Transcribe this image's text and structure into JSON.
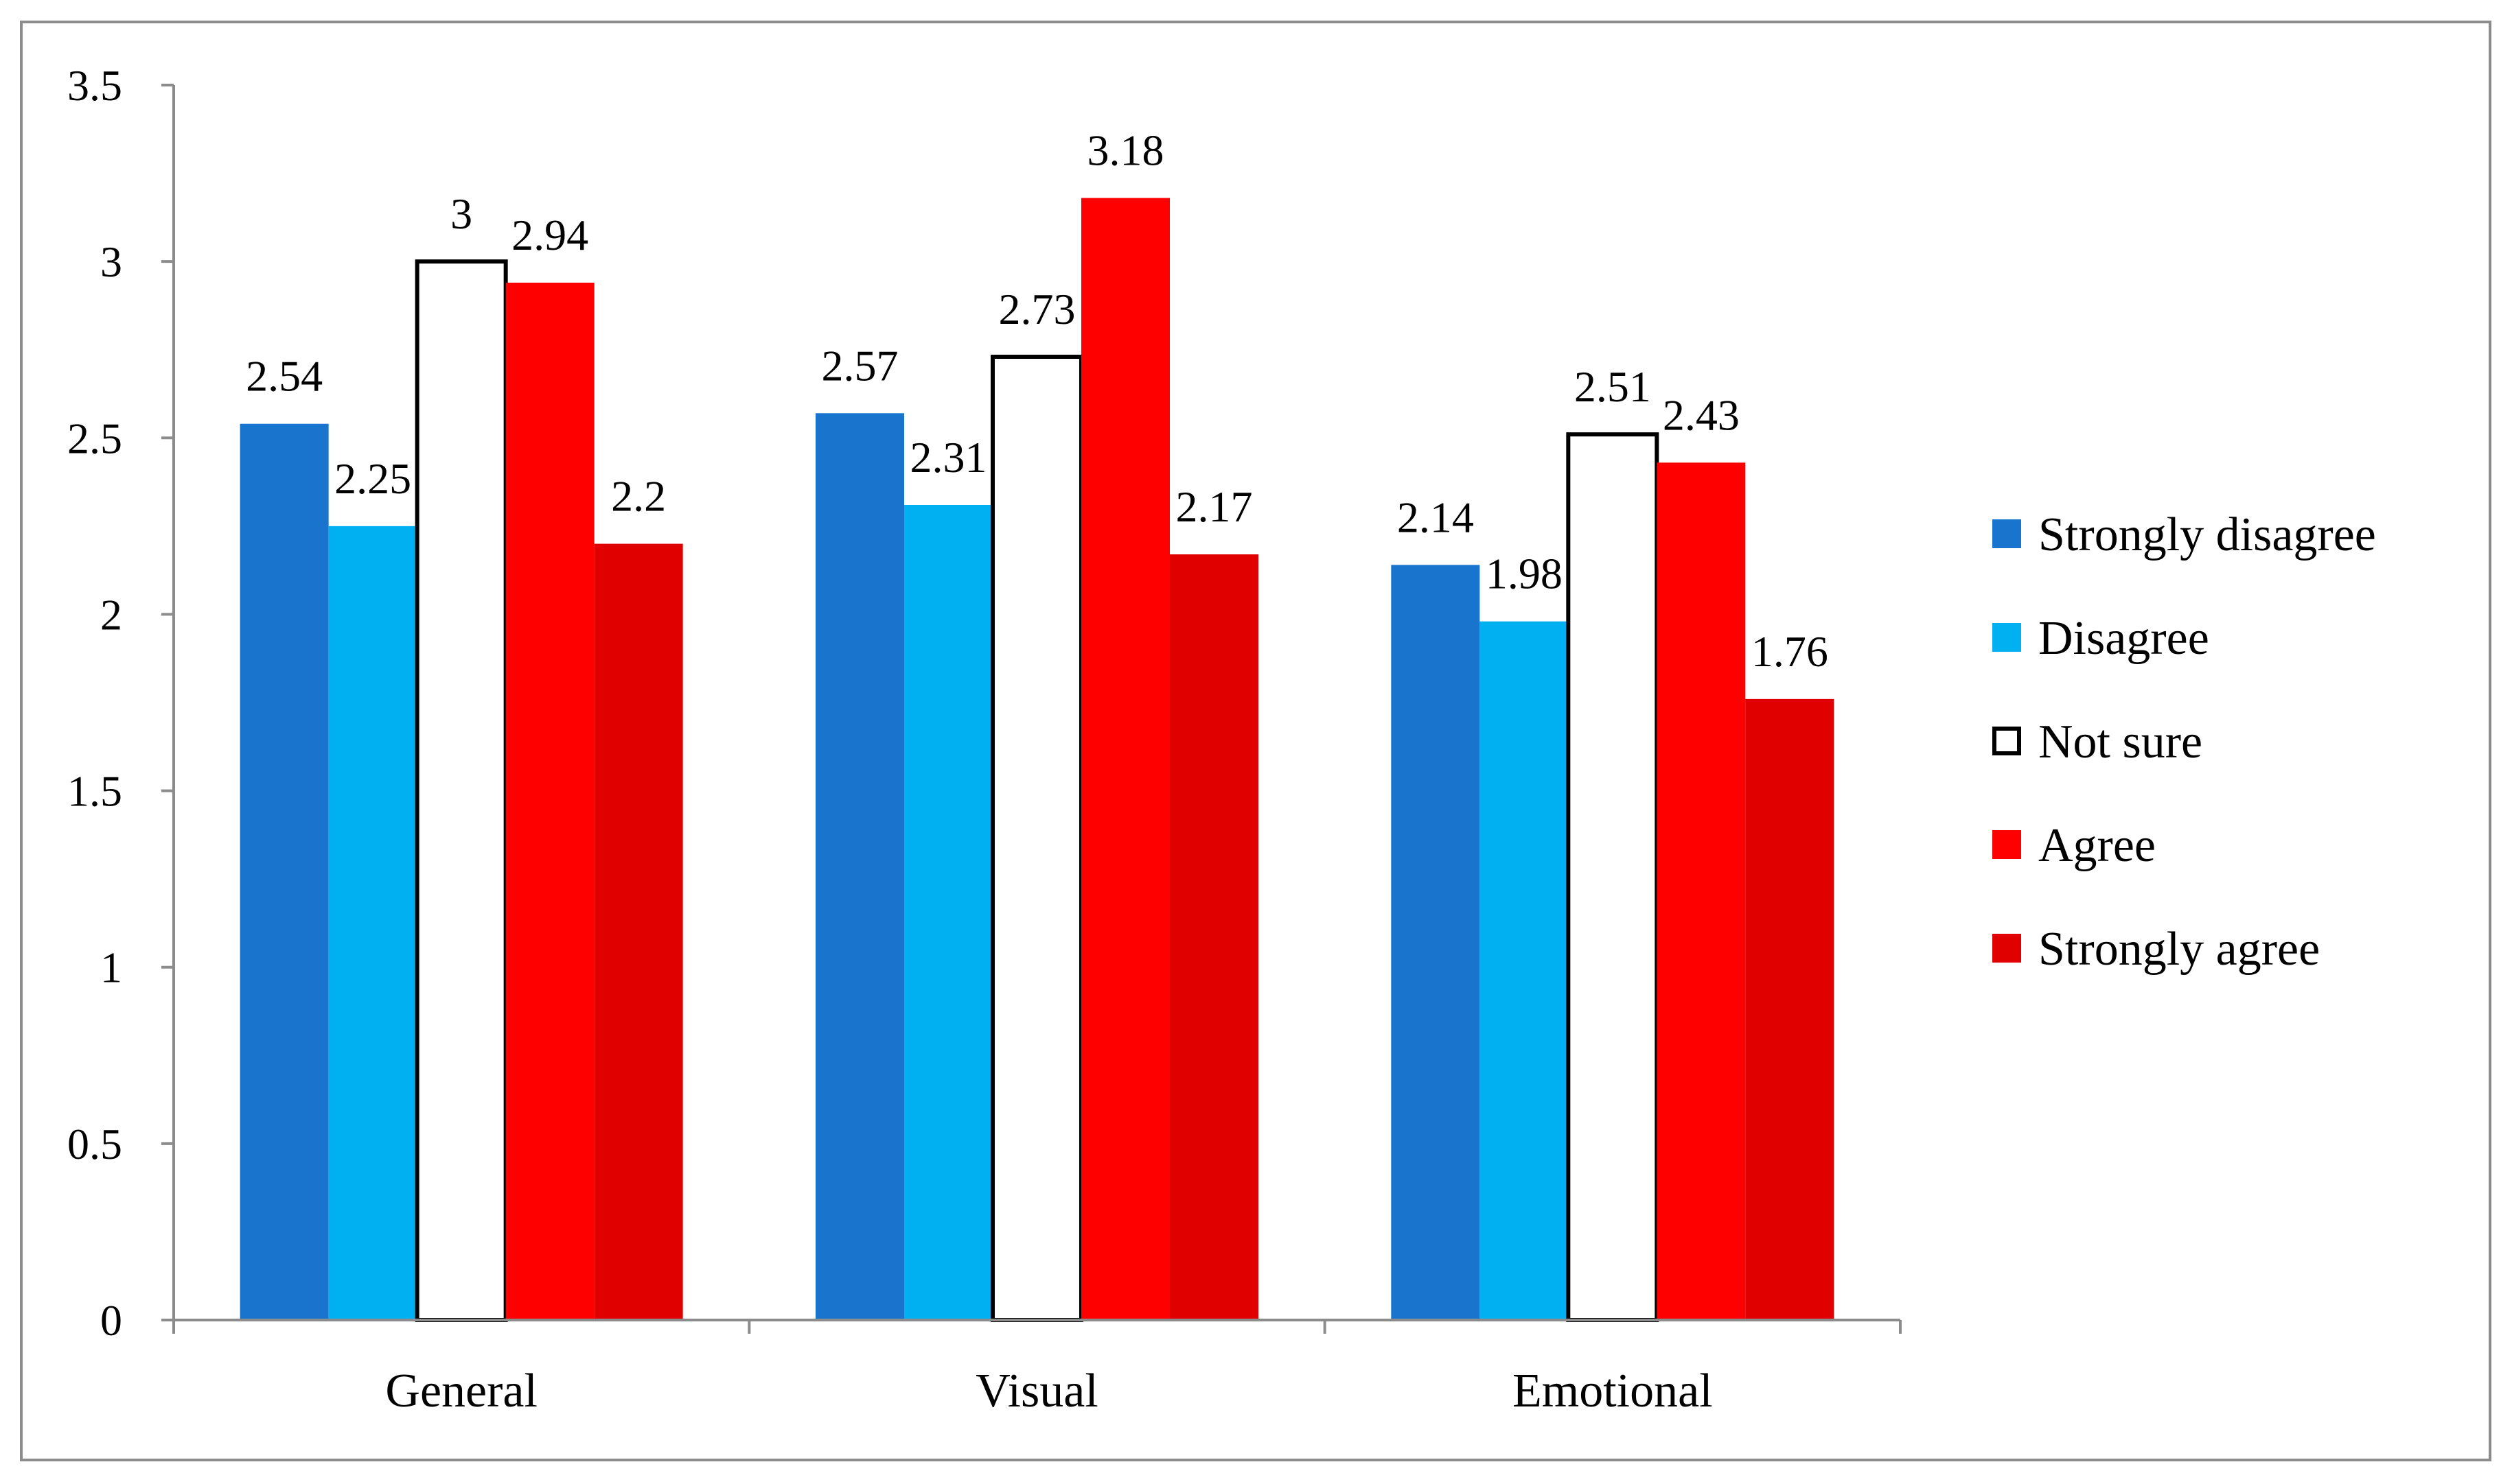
{
  "chart_data": {
    "type": "bar",
    "categories": [
      "General",
      "Visual",
      "Emotional"
    ],
    "series": [
      {
        "name": "Strongly disagree",
        "values": [
          2.54,
          2.57,
          2.14
        ],
        "color": "#1874cd",
        "outline": false
      },
      {
        "name": "Disagree",
        "values": [
          2.25,
          2.31,
          1.98
        ],
        "color": "#00b0f0",
        "outline": false
      },
      {
        "name": "Not sure",
        "values": [
          3,
          2.73,
          2.51
        ],
        "color": "#ffffff",
        "outline": true
      },
      {
        "name": "Agree",
        "values": [
          2.94,
          3.18,
          2.43
        ],
        "color": "#ff0000",
        "outline": false
      },
      {
        "name": "Strongly agree",
        "values": [
          2.2,
          2.17,
          1.76
        ],
        "color": "#e00000",
        "outline": false
      }
    ],
    "data_labels": [
      [
        "2.54",
        "2.57",
        "2.14"
      ],
      [
        "2.25",
        "2.31",
        "1.98"
      ],
      [
        "3",
        "2.73",
        "2.51"
      ],
      [
        "2.94",
        "3.18",
        "2.43"
      ],
      [
        "2.2",
        "2.17",
        "1.76"
      ]
    ],
    "y_ticks": [
      "0",
      "0.5",
      "1",
      "1.5",
      "2",
      "2.5",
      "3",
      "3.5"
    ],
    "ylim": [
      0,
      3.5
    ],
    "title": "",
    "xlabel": "",
    "ylabel": "",
    "grid": false,
    "legend_position": "right"
  }
}
